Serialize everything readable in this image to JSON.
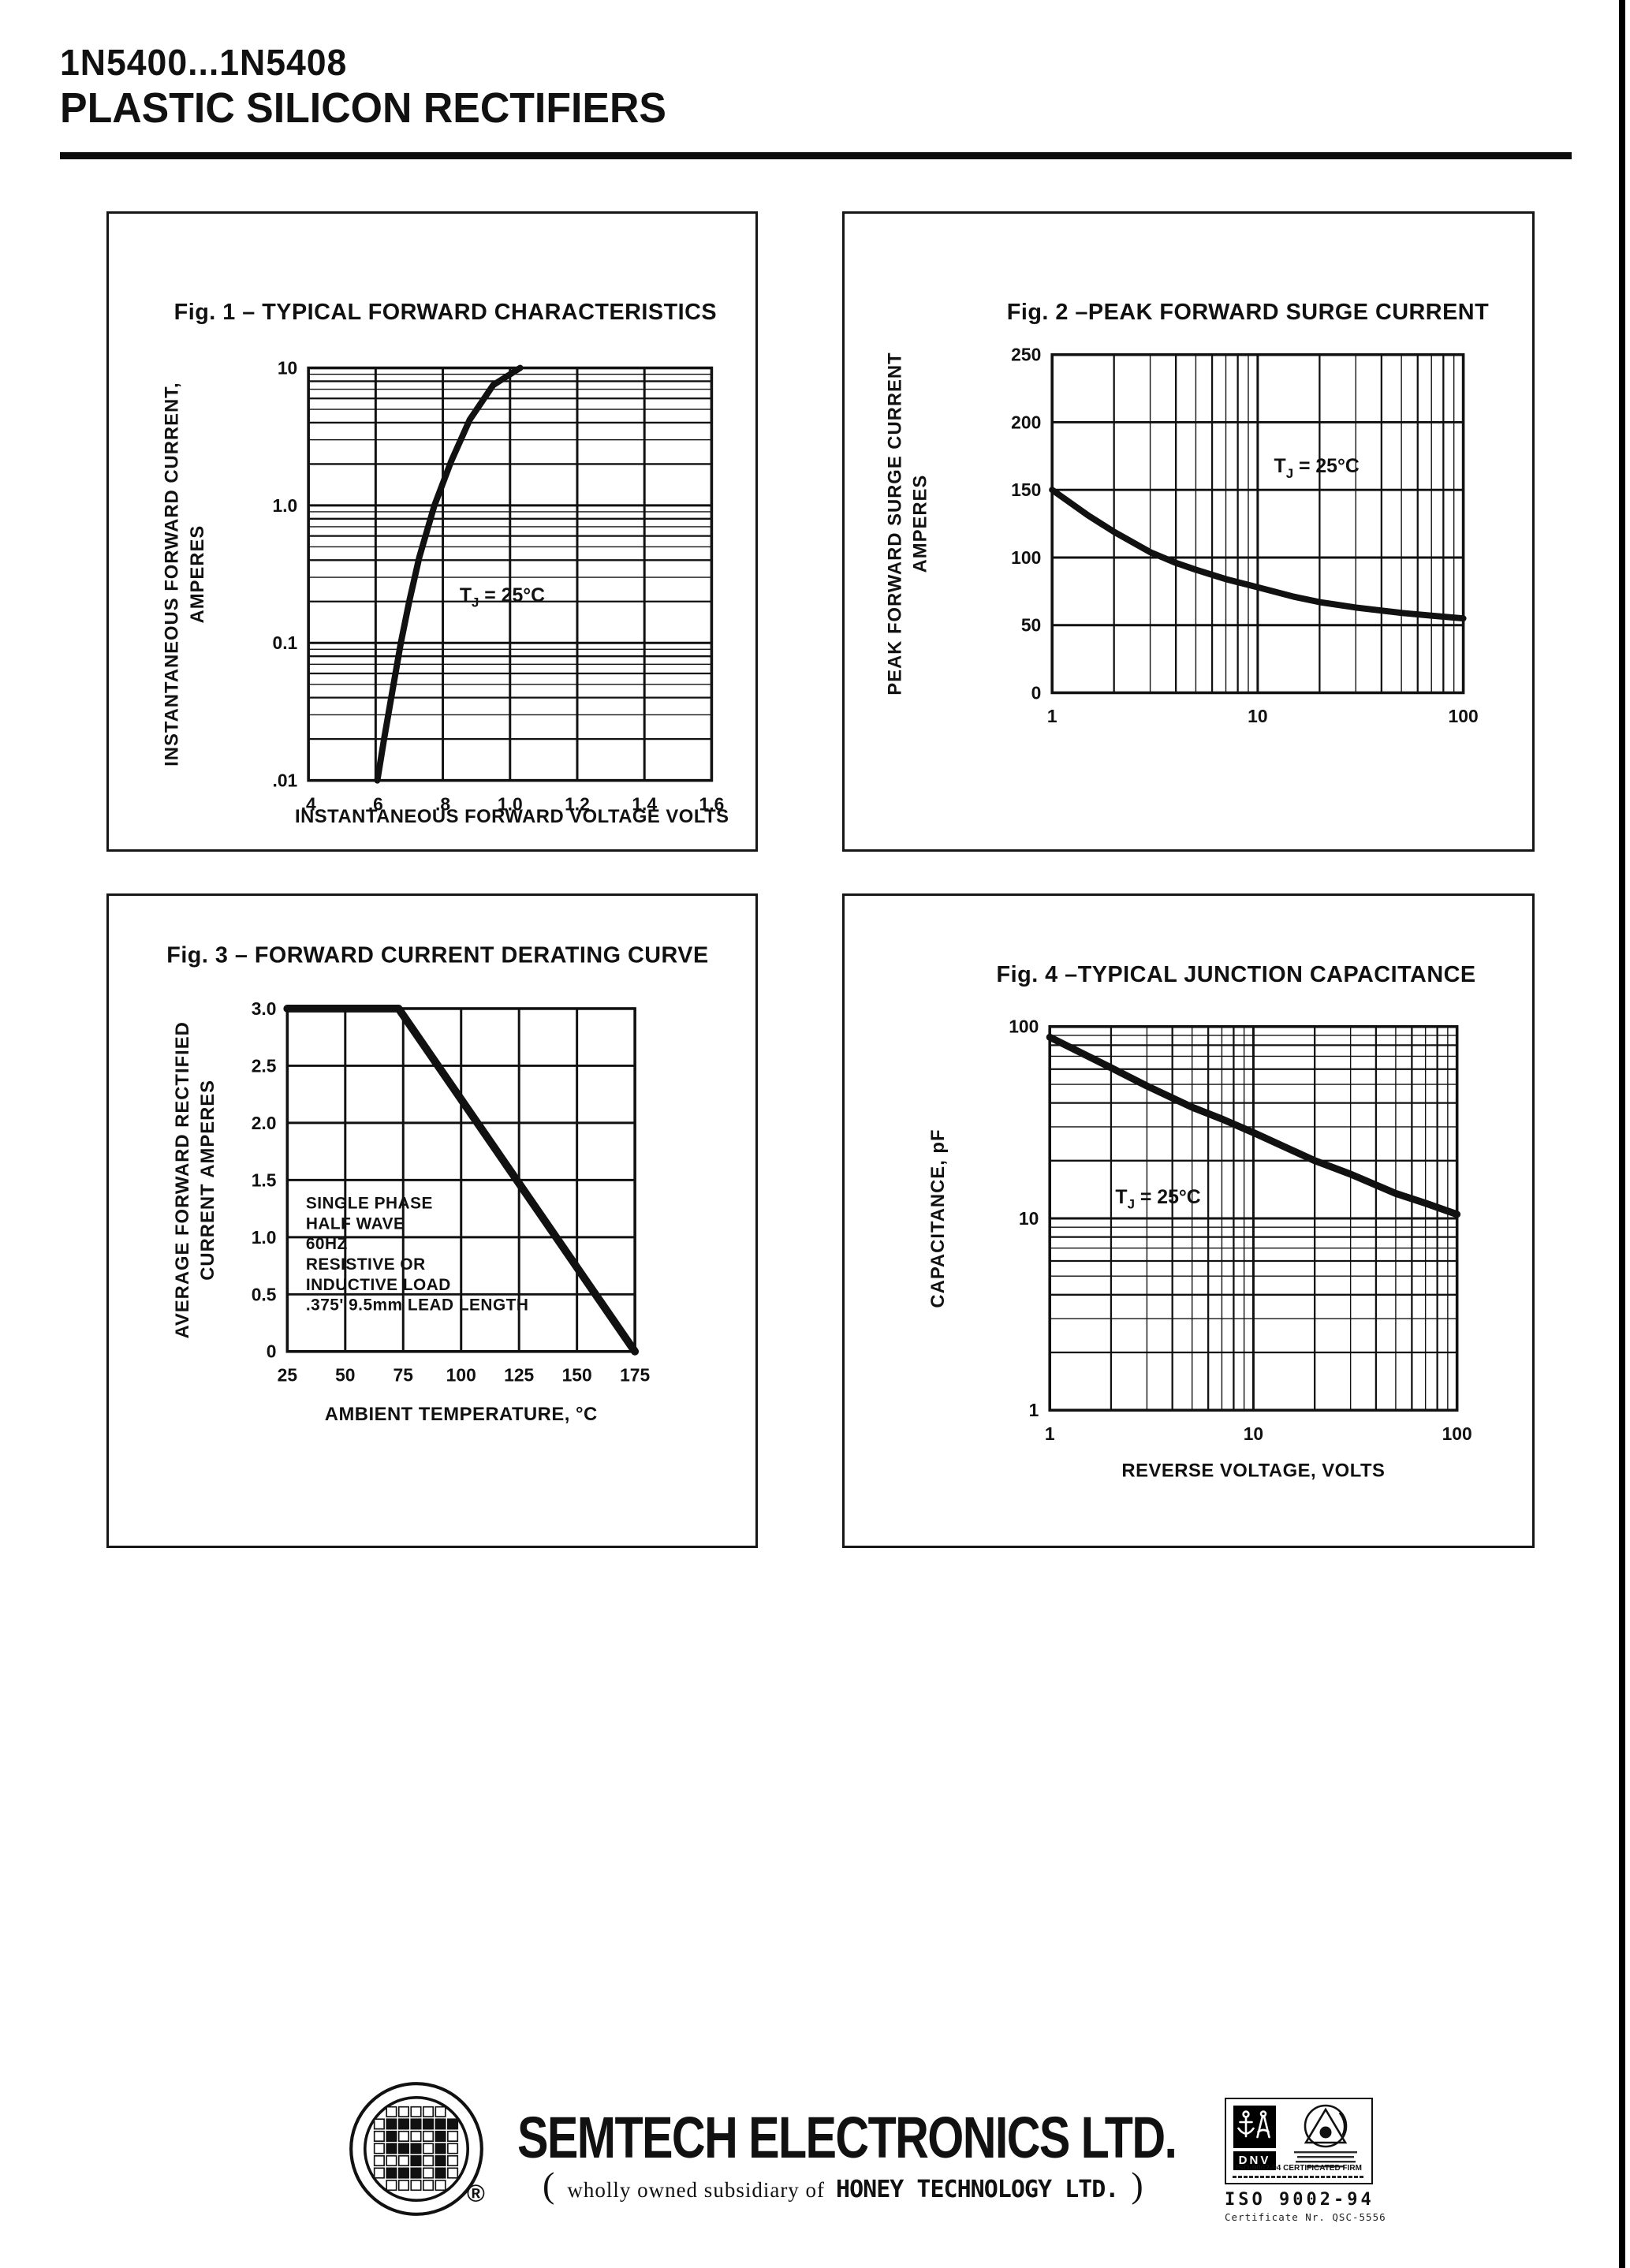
{
  "colors": {
    "ink": "#111111",
    "paper": "#ffffff"
  },
  "header": {
    "part_range": "1N5400...1N5408",
    "title": "PLASTIC SILICON RECTIFIERS"
  },
  "chart_data": [
    {
      "id": "fig1",
      "type": "line",
      "title": "Fig. 1 – TYPICAL FORWARD CHARACTERISTICS",
      "xlabel": "INSTANTANEOUS FORWARD VOLTAGE VOLTS",
      "ylabel_lines": [
        "INSTANTANEOUS FORWARD CURRENT,",
        "AMPERES"
      ],
      "xscale": "linear",
      "yscale": "log",
      "xlim": [
        0.4,
        1.6
      ],
      "ylim": [
        0.01,
        10
      ],
      "xtick_values": [
        0.4,
        0.6,
        0.8,
        1.0,
        1.2,
        1.4,
        1.6
      ],
      "xtick_labels": [
        ".4",
        ".6",
        ".8",
        "1.0",
        "1.2",
        "1.4",
        "1.6"
      ],
      "ytick_values": [
        10,
        1.0,
        0.1,
        0.01
      ],
      "ytick_labels": [
        "10",
        "1.0",
        "0.1",
        ".01"
      ],
      "grid": "on",
      "annotation": {
        "base": "T",
        "sub": "J",
        "rest": " = 25°C",
        "x": 0.85,
        "y": 0.2
      },
      "series": [
        {
          "name": "forward-characteristic",
          "points": [
            [
              0.605,
              0.01
            ],
            [
              0.625,
              0.02
            ],
            [
              0.65,
              0.045
            ],
            [
              0.675,
              0.1
            ],
            [
              0.7,
              0.2
            ],
            [
              0.73,
              0.42
            ],
            [
              0.775,
              1.0
            ],
            [
              0.825,
              2.1
            ],
            [
              0.88,
              4.2
            ],
            [
              0.95,
              7.5
            ],
            [
              1.03,
              10
            ]
          ]
        }
      ]
    },
    {
      "id": "fig2",
      "type": "line",
      "title": "Fig. 2 –PEAK FORWARD SURGE CURRENT",
      "xlabel": "",
      "ylabel_lines": [
        "PEAK FORWARD SURGE CURRENT",
        "AMPERES"
      ],
      "xscale": "log",
      "yscale": "linear",
      "xlim": [
        1,
        100
      ],
      "ylim": [
        0,
        250
      ],
      "xtick_values": [
        1,
        10,
        100
      ],
      "xtick_labels": [
        "1",
        "10",
        "100"
      ],
      "ytick_values": [
        250,
        200,
        150,
        100,
        50,
        0
      ],
      "ytick_labels": [
        "250",
        "200",
        "150",
        "100",
        "50",
        "0"
      ],
      "grid": "on",
      "annotation": {
        "base": "T",
        "sub": "J",
        "rest": " = 25°C",
        "x": 12,
        "y": 163
      },
      "series": [
        {
          "name": "surge-current",
          "points": [
            [
              1,
              150
            ],
            [
              1.5,
              131
            ],
            [
              2,
              119
            ],
            [
              3,
              104
            ],
            [
              4,
              96
            ],
            [
              5,
              91
            ],
            [
              7,
              84
            ],
            [
              10,
              78
            ],
            [
              15,
              71
            ],
            [
              20,
              67
            ],
            [
              30,
              63
            ],
            [
              50,
              59
            ],
            [
              70,
              57
            ],
            [
              100,
              55
            ]
          ]
        }
      ]
    },
    {
      "id": "fig3",
      "type": "line",
      "title": "Fig. 3 – FORWARD CURRENT DERATING CURVE",
      "xlabel": "AMBIENT TEMPERATURE, °C",
      "ylabel_lines": [
        "AVERAGE FORWARD RECTIFIED",
        "CURRENT AMPERES"
      ],
      "xscale": "linear",
      "yscale": "linear",
      "xlim": [
        25,
        175
      ],
      "ylim": [
        0,
        3
      ],
      "xtick_values": [
        25,
        50,
        75,
        100,
        125,
        150,
        175
      ],
      "xtick_labels": [
        "25",
        "50",
        "75",
        "100",
        "125",
        "150",
        "175"
      ],
      "ytick_values": [
        3.0,
        2.5,
        2.0,
        1.5,
        1.0,
        0.5,
        0
      ],
      "ytick_labels": [
        "3.0",
        "2.5",
        "2.0",
        "1.5",
        "1.0",
        "0.5",
        "0"
      ],
      "grid": "on",
      "note_lines": [
        "SINGLE PHASE",
        "HALF WAVE",
        "60HZ",
        "RESISTIVE OR",
        "INDUCTIVE LOAD",
        ".375'  9.5mm LEAD LENGTH"
      ],
      "series": [
        {
          "name": "derating",
          "points": [
            [
              25,
              3
            ],
            [
              73,
              3
            ],
            [
              175,
              0
            ]
          ]
        }
      ]
    },
    {
      "id": "fig4",
      "type": "line",
      "title": "Fig. 4 –TYPICAL JUNCTION CAPACITANCE",
      "xlabel": "REVERSE VOLTAGE, VOLTS",
      "ylabel_lines": [
        "CAPACITANCE, pF"
      ],
      "xscale": "log",
      "yscale": "log",
      "xlim": [
        1,
        100
      ],
      "ylim": [
        1,
        100
      ],
      "xtick_values": [
        1,
        10,
        100
      ],
      "xtick_labels": [
        "1",
        "10",
        "100"
      ],
      "ytick_values": [
        100,
        10,
        1
      ],
      "ytick_labels": [
        "100",
        "10",
        "1"
      ],
      "grid": "on",
      "annotation": {
        "base": "T",
        "sub": "J",
        "rest": " = 25°C",
        "x": 2.1,
        "y": 12
      },
      "series": [
        {
          "name": "junction-capacitance",
          "points": [
            [
              1,
              88
            ],
            [
              1.5,
              71
            ],
            [
              2,
              61
            ],
            [
              3,
              49
            ],
            [
              5,
              38
            ],
            [
              7,
              33
            ],
            [
              10,
              28
            ],
            [
              15,
              23
            ],
            [
              20,
              20
            ],
            [
              30,
              17
            ],
            [
              50,
              13.5
            ],
            [
              70,
              12
            ],
            [
              100,
              10.5
            ]
          ]
        }
      ]
    }
  ],
  "footer": {
    "company": "SEMTECH ELECTRONICS LTD.",
    "subsidiary_open": "(",
    "subsidiary_text": "wholly owned subsidiary of",
    "subsidiary_company": "HONEY TECHNOLOGY LTD.",
    "subsidiary_close": ")",
    "registered_mark": "®",
    "logo_letters": "ST",
    "cert": {
      "dnv": "DNV",
      "firm_line": "ISO-9002-94 CERTIFICATED FIRM",
      "iso_line": "ISO 9002-94",
      "certificate_line": "Certificate Nr. QSC-5556"
    }
  }
}
